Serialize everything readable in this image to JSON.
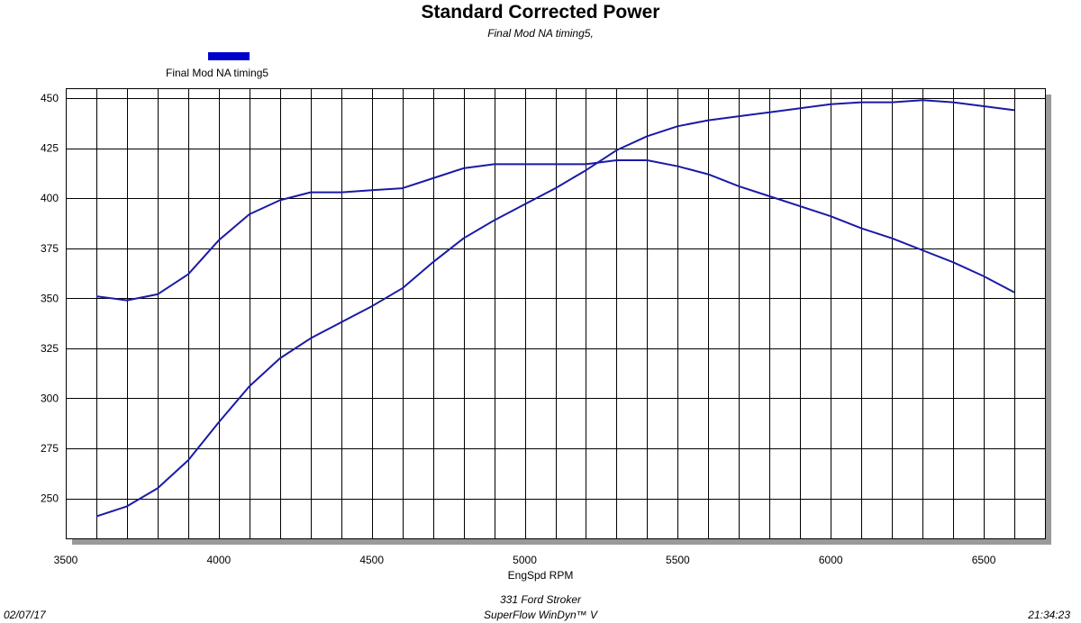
{
  "chart_data": {
    "type": "line",
    "title": "Standard Corrected Power",
    "subtitle": "Final Mod NA timing5,",
    "xlabel": "EngSpd  RPM",
    "ylabel": "",
    "xlim": [
      3500,
      6700
    ],
    "ylim": [
      230,
      455
    ],
    "xticks": [
      3500,
      4000,
      4500,
      5000,
      5500,
      6000,
      6500
    ],
    "yticks": [
      250,
      275,
      300,
      325,
      350,
      375,
      400,
      425,
      450
    ],
    "x_gridlines_step": 100,
    "grid": true,
    "legend": {
      "position": "top-left",
      "entries": [
        {
          "label": "Final Mod NA timing5",
          "color": "#0000cc"
        }
      ]
    },
    "series": [
      {
        "x": [
          3600,
          3700,
          3800,
          3900,
          4000,
          4100,
          4200,
          4300,
          4400,
          4500,
          4600,
          4700,
          4800,
          4900,
          5000,
          5100,
          5200,
          5300,
          5400,
          5500,
          5600,
          5700,
          5800,
          5900,
          6000,
          6100,
          6200,
          6300,
          6400,
          6500,
          6600
        ],
        "values": [
          241,
          246,
          255,
          269,
          288,
          306,
          320,
          330,
          338,
          346,
          355,
          368,
          380,
          389,
          397,
          405,
          414,
          424,
          431,
          436,
          439,
          441,
          443,
          445,
          447,
          448,
          448,
          449,
          448,
          446,
          444
        ],
        "color": "#1a1aa6"
      },
      {
        "x": [
          3600,
          3700,
          3800,
          3900,
          4000,
          4100,
          4200,
          4300,
          4400,
          4500,
          4600,
          4700,
          4800,
          4900,
          5000,
          5100,
          5200,
          5300,
          5400,
          5500,
          5600,
          5700,
          5800,
          5900,
          6000,
          6100,
          6200,
          6300,
          6400,
          6500,
          6600
        ],
        "values": [
          351,
          349,
          352,
          362,
          379,
          392,
          399,
          403,
          403,
          404,
          405,
          410,
          415,
          417,
          417,
          417,
          417,
          419,
          419,
          416,
          412,
          406,
          401,
          396,
          391,
          385,
          380,
          374,
          368,
          361,
          353
        ],
        "color": "#1a1aa6"
      }
    ]
  },
  "footer": {
    "line1": "331 Ford Stroker",
    "line2": "SuperFlow WinDyn™ V",
    "date": "02/07/17",
    "time": "21:34:23"
  }
}
